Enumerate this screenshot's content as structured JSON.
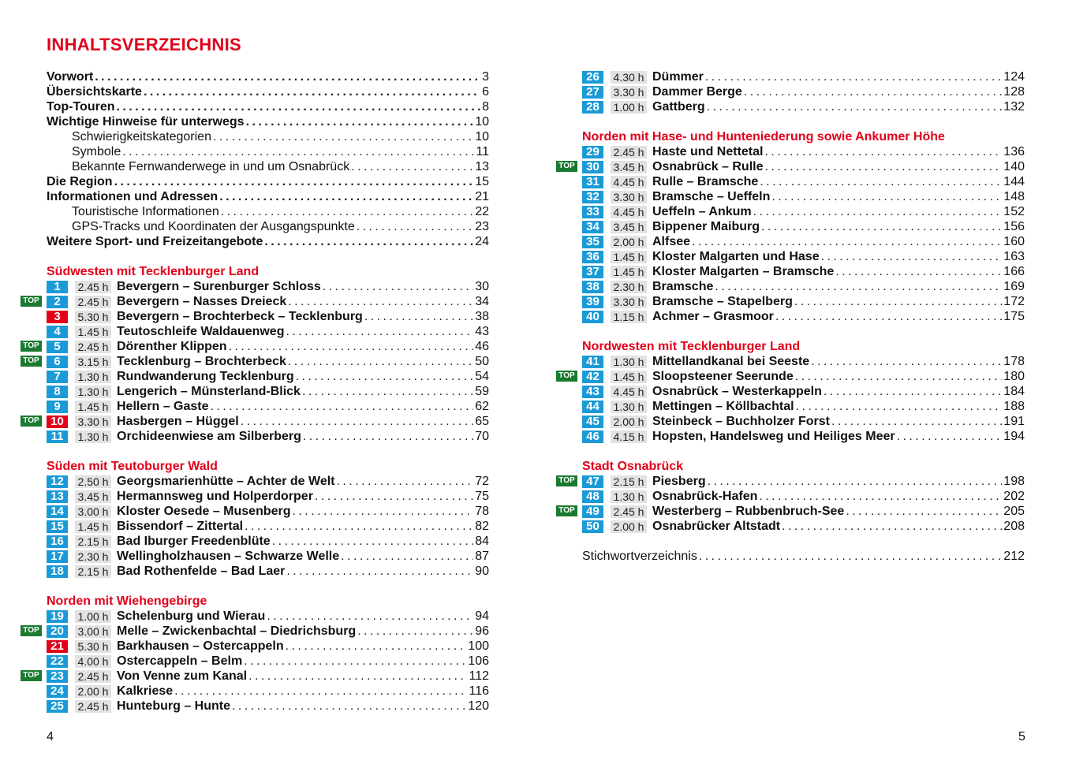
{
  "title": "INHALTSVERZEICHNIS",
  "colors": {
    "accent_red": "#e2001a",
    "tour_blue": "#1a9ad6",
    "top_green": "#1a7a30",
    "time_gray": "#e2e2e2"
  },
  "left": {
    "frontmatter": [
      {
        "title": "Vorwort",
        "page": "3",
        "indent": false
      },
      {
        "title": "Übersichtskarte",
        "page": "6",
        "indent": false
      },
      {
        "title": "Top-Touren",
        "page": "8",
        "indent": false
      },
      {
        "title": "Wichtige Hinweise für unterwegs",
        "page": "10",
        "indent": false
      },
      {
        "title": "Schwierigkeitskategorien",
        "page": "10",
        "indent": true
      },
      {
        "title": "Symbole",
        "page": "11",
        "indent": true
      },
      {
        "title": "Bekannte Fernwanderwege in und um Osnabrück",
        "page": "13",
        "indent": true
      },
      {
        "title": "Die Region",
        "page": "15",
        "indent": false
      },
      {
        "title": "Informationen und Adressen",
        "page": "21",
        "indent": false
      },
      {
        "title": "Touristische Informationen",
        "page": "22",
        "indent": true
      },
      {
        "title": "GPS-Tracks und Koordinaten der Ausgangspunkte",
        "page": "23",
        "indent": true
      },
      {
        "title": "Weitere Sport- und Freizeitangebote",
        "page": "24",
        "indent": false
      }
    ],
    "sections": [
      {
        "heading": "Südwesten mit Tecklenburger Land",
        "entries": [
          {
            "num": "1",
            "time": "2.45 h",
            "title": "Bevergern – Surenburger Schloss",
            "page": "30"
          },
          {
            "num": "2",
            "time": "2.45 h",
            "title": "Bevergern – Nasses Dreieck",
            "page": "34",
            "top": true
          },
          {
            "num": "3",
            "time": "5.30 h",
            "title": "Bevergern – Brochterbeck – Tecklenburg",
            "page": "38",
            "red": true
          },
          {
            "num": "4",
            "time": "1.45 h",
            "title": "Teutoschleife Waldauenweg",
            "page": "43"
          },
          {
            "num": "5",
            "time": "2.45 h",
            "title": "Dörenther Klippen",
            "page": "46",
            "top": true
          },
          {
            "num": "6",
            "time": "3.15 h",
            "title": "Tecklenburg – Brochterbeck",
            "page": "50",
            "top": true
          },
          {
            "num": "7",
            "time": "1.30 h",
            "title": "Rundwanderung Tecklenburg",
            "page": "54"
          },
          {
            "num": "8",
            "time": "1.30 h",
            "title": "Lengerich – Münsterland-Blick",
            "page": "59"
          },
          {
            "num": "9",
            "time": "1.45 h",
            "title": "Hellern – Gaste",
            "page": "62"
          },
          {
            "num": "10",
            "time": "3.30 h",
            "title": "Hasbergen – Hüggel",
            "page": "65",
            "top": true,
            "red": true
          },
          {
            "num": "11",
            "time": "1.30 h",
            "title": "Orchideenwiese am Silberberg",
            "page": "70"
          }
        ]
      },
      {
        "heading": "Süden mit Teutoburger Wald",
        "entries": [
          {
            "num": "12",
            "time": "2.50 h",
            "title": "Georgsmarienhütte – Achter de Welt",
            "page": "72"
          },
          {
            "num": "13",
            "time": "3.45 h",
            "title": "Hermannsweg und Holperdorper",
            "page": "75"
          },
          {
            "num": "14",
            "time": "3.00 h",
            "title": "Kloster Oesede – Musenberg",
            "page": "78"
          },
          {
            "num": "15",
            "time": "1.45 h",
            "title": "Bissendorf – Zittertal",
            "page": "82"
          },
          {
            "num": "16",
            "time": "2.15 h",
            "title": "Bad Iburger Freedenblüte",
            "page": "84"
          },
          {
            "num": "17",
            "time": "2.30 h",
            "title": "Wellingholzhausen – Schwarze Welle",
            "page": "87"
          },
          {
            "num": "18",
            "time": "2.15 h",
            "title": "Bad Rothenfelde – Bad Laer",
            "page": "90"
          }
        ]
      },
      {
        "heading": "Norden mit Wiehengebirge",
        "entries": [
          {
            "num": "19",
            "time": "1.00 h",
            "title": "Schelenburg und Wierau",
            "page": "94"
          },
          {
            "num": "20",
            "time": "3.00 h",
            "title": "Melle – Zwickenbachtal – Diedrichsburg",
            "page": "96",
            "top": true
          },
          {
            "num": "21",
            "time": "5.30 h",
            "title": "Barkhausen – Ostercappeln",
            "page": "100",
            "red": true
          },
          {
            "num": "22",
            "time": "4.00 h",
            "title": "Ostercappeln – Belm",
            "page": "106"
          },
          {
            "num": "23",
            "time": "2.45 h",
            "title": "Von Venne zum Kanal",
            "page": "112",
            "top": true
          },
          {
            "num": "24",
            "time": "2.00 h",
            "title": "Kalkriese",
            "page": "116"
          },
          {
            "num": "25",
            "time": "2.45 h",
            "title": "Hunteburg – Hunte",
            "page": "120"
          }
        ]
      }
    ],
    "page_number": "4"
  },
  "right": {
    "sections": [
      {
        "heading": "",
        "entries": [
          {
            "num": "26",
            "time": "4.30 h",
            "title": "Dümmer",
            "page": "124"
          },
          {
            "num": "27",
            "time": "3.30 h",
            "title": "Dammer Berge",
            "page": "128"
          },
          {
            "num": "28",
            "time": "1.00 h",
            "title": "Gattberg",
            "page": "132"
          }
        ]
      },
      {
        "heading": "Norden mit Hase- und Hunteniederung sowie Ankumer Höhe",
        "entries": [
          {
            "num": "29",
            "time": "2.45 h",
            "title": "Haste und Nettetal",
            "page": "136"
          },
          {
            "num": "30",
            "time": "3.45 h",
            "title": "Osnabrück – Rulle",
            "page": "140",
            "top": true
          },
          {
            "num": "31",
            "time": "4.45 h",
            "title": "Rulle – Bramsche",
            "page": "144"
          },
          {
            "num": "32",
            "time": "3.30 h",
            "title": "Bramsche – Ueffeln",
            "page": "148"
          },
          {
            "num": "33",
            "time": "4.45 h",
            "title": "Ueffeln – Ankum",
            "page": "152"
          },
          {
            "num": "34",
            "time": "3.45 h",
            "title": "Bippener Maiburg",
            "page": "156"
          },
          {
            "num": "35",
            "time": "2.00 h",
            "title": "Alfsee",
            "page": "160"
          },
          {
            "num": "36",
            "time": "1.45 h",
            "title": "Kloster Malgarten und Hase",
            "page": "163"
          },
          {
            "num": "37",
            "time": "1.45 h",
            "title": "Kloster Malgarten – Bramsche",
            "page": "166"
          },
          {
            "num": "38",
            "time": "2.30 h",
            "title": "Bramsche",
            "page": "169"
          },
          {
            "num": "39",
            "time": "3.30 h",
            "title": "Bramsche – Stapelberg",
            "page": "172"
          },
          {
            "num": "40",
            "time": "1.15 h",
            "title": "Achmer – Grasmoor",
            "page": "175"
          }
        ]
      },
      {
        "heading": "Nordwesten mit Tecklenburger Land",
        "entries": [
          {
            "num": "41",
            "time": "1.30 h",
            "title": "Mittellandkanal bei Seeste",
            "page": "178"
          },
          {
            "num": "42",
            "time": "1.45 h",
            "title": "Sloopsteener Seerunde",
            "page": "180",
            "top": true
          },
          {
            "num": "43",
            "time": "4.45 h",
            "title": "Osnabrück – Westerkappeln",
            "page": "184"
          },
          {
            "num": "44",
            "time": "1.30 h",
            "title": "Mettingen – Köllbachtal",
            "page": "188"
          },
          {
            "num": "45",
            "time": "2.00 h",
            "title": "Steinbeck – Buchholzer Forst",
            "page": "191"
          },
          {
            "num": "46",
            "time": "4.15 h",
            "title": "Hopsten, Handelsweg und Heiliges Meer",
            "page": "194"
          }
        ]
      },
      {
        "heading": "Stadt Osnabrück",
        "entries": [
          {
            "num": "47",
            "time": "2.15 h",
            "title": "Piesberg",
            "page": "198",
            "top": true
          },
          {
            "num": "48",
            "time": "1.30 h",
            "title": "Osnabrück-Hafen",
            "page": "202"
          },
          {
            "num": "49",
            "time": "2.45 h",
            "title": "Westerberg – Rubbenbruch-See",
            "page": "205",
            "top": true
          },
          {
            "num": "50",
            "time": "2.00 h",
            "title": "Osnabrücker Altstadt",
            "page": "208"
          }
        ]
      }
    ],
    "index": {
      "title": "Stichwortverzeichnis",
      "page": "212"
    },
    "page_number": "5"
  },
  "top_label": "TOP"
}
